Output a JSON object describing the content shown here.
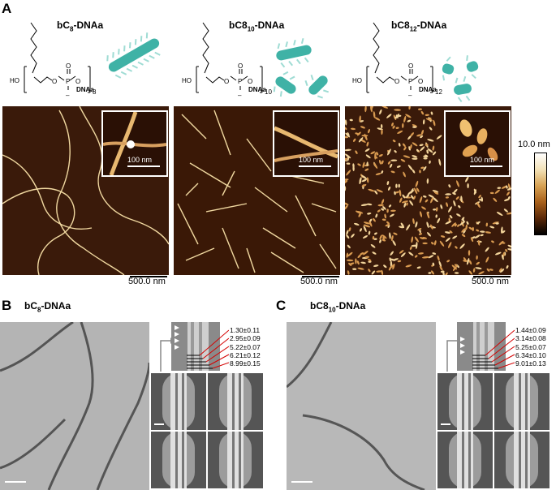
{
  "panels": {
    "a": "A",
    "b": "B",
    "c": "C"
  },
  "molecules": [
    {
      "prefix": "bC",
      "num": "8",
      "sub": "",
      "suffix": "-DNAa",
      "repeat": "8"
    },
    {
      "prefix": "bC",
      "num": "8",
      "sub": "10",
      "suffix": "-DNAa",
      "repeat": "10"
    },
    {
      "prefix": "bC",
      "num": "",
      "sub": "12",
      "suffix": "-DNAa",
      "repeat": "12",
      "prefix_full": "bC"
    }
  ],
  "structure_labels": {
    "ho": "HO",
    "o": "O",
    "p": "P",
    "dnaa": "DNAa",
    "minus": "–"
  },
  "afm": {
    "inset_scale": "100 nm",
    "main_scale": "500.0 nm"
  },
  "colorbar": {
    "max_label": "10.0 nm",
    "colors": [
      "#ffffff",
      "#f3e2b8",
      "#d7a254",
      "#a8601a",
      "#5a2808",
      "#000000"
    ]
  },
  "panel_b": {
    "title_prefix": "bC",
    "title_sub": "8",
    "title_suffix": "-DNAa",
    "measurements": [
      "1.30±0.11",
      "2.95±0.09",
      "5.22±0.07",
      "6.21±0.12",
      "8.99±0.15"
    ]
  },
  "panel_c": {
    "title_prefix": "bC8",
    "title_sub": "10",
    "title_suffix": "-DNAa",
    "measurements": [
      "1.44±0.09",
      "3.14±0.08",
      "5.25±0.07",
      "6.34±0.10",
      "9.01±0.13"
    ]
  },
  "colors": {
    "arrow_red": "#d40000",
    "fiber_teal": "#3fb2a6",
    "afm_dark": "#3a1a0a"
  }
}
